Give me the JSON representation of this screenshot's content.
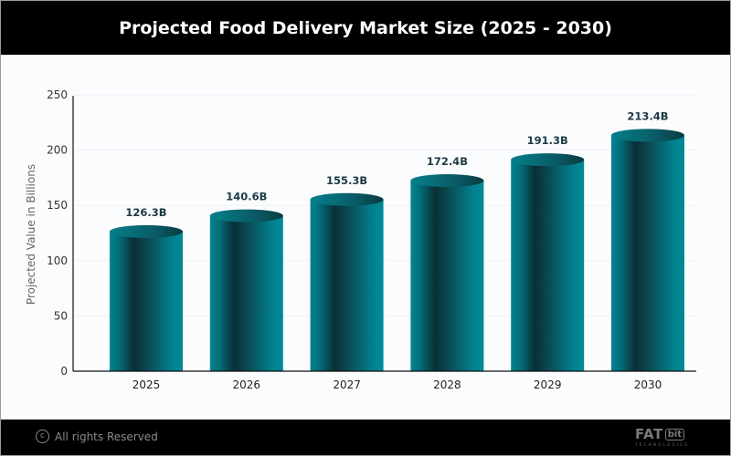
{
  "header": {
    "title": "Projected Food Delivery Market Size (2025 - 2030)"
  },
  "footer": {
    "copyright_icon": "copyright-icon",
    "copyright_symbol": "c",
    "copyright_text": "All rights Reserved",
    "logo_text": "FATbit",
    "logo_main": "FAT",
    "logo_boxed": "bit",
    "logo_sub": "TECHNOLOGIES"
  },
  "colors": {
    "bar_light": "#028391",
    "bar_dark": "#0a2f36",
    "bar_top": "#0c6670",
    "header_bg": "#000000"
  },
  "chart_data": {
    "type": "bar",
    "style": "3d-cylinder",
    "title": "Projected Food Delivery Market Size (2025 - 2030)",
    "xlabel": "",
    "ylabel": "Projected Value in Billions",
    "categories": [
      "2025",
      "2026",
      "2027",
      "2028",
      "2029",
      "2030"
    ],
    "values": [
      126.3,
      140.6,
      155.3,
      172.4,
      191.3,
      213.4
    ],
    "data_labels": [
      "126.3B",
      "140.6B",
      "155.3B",
      "172.4B",
      "191.3B",
      "213.4B"
    ],
    "ylim": [
      0,
      250
    ],
    "yticks": [
      0,
      50,
      100,
      150,
      200,
      250
    ],
    "ytick_labels": [
      "0",
      "50",
      "100",
      "150",
      "200",
      "250"
    ],
    "grid": true,
    "legend": "none"
  }
}
